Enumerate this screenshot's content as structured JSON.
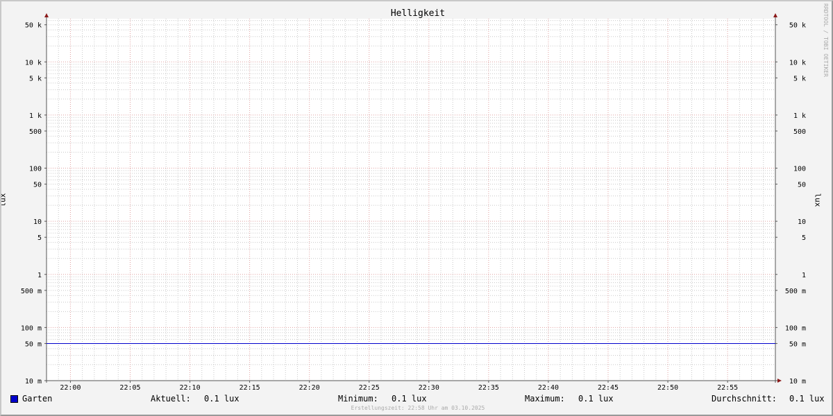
{
  "chart_data": {
    "type": "line",
    "title": "Helligkeit",
    "ylabel": "lux",
    "ylabel_right": "lux",
    "yscale": "log",
    "ylim": [
      0.01,
      65000
    ],
    "xlim": [
      "21:58",
      "22:59"
    ],
    "grid": true,
    "y_ticks": [
      {
        "value": 0.01,
        "label": "10 m"
      },
      {
        "value": 0.05,
        "label": "50 m"
      },
      {
        "value": 0.1,
        "label": "100 m"
      },
      {
        "value": 0.5,
        "label": "500 m"
      },
      {
        "value": 1,
        "label": "1"
      },
      {
        "value": 5,
        "label": "5"
      },
      {
        "value": 10,
        "label": "10"
      },
      {
        "value": 50,
        "label": "50"
      },
      {
        "value": 100,
        "label": "100"
      },
      {
        "value": 500,
        "label": "500"
      },
      {
        "value": 1000,
        "label": "1 k"
      },
      {
        "value": 5000,
        "label": "5 k"
      },
      {
        "value": 10000,
        "label": "10 k"
      },
      {
        "value": 50000,
        "label": "50 k"
      }
    ],
    "x_ticks": [
      "22:00",
      "22:05",
      "22:10",
      "22:15",
      "22:20",
      "22:25",
      "22:30",
      "22:35",
      "22:40",
      "22:45",
      "22:50",
      "22:55"
    ],
    "series": [
      {
        "name": "Garten",
        "color": "#0000cc",
        "x": [
          "21:58",
          "22:59"
        ],
        "values": [
          0.05,
          0.05
        ]
      }
    ],
    "colors": {
      "major_grid": "#e0a0a0",
      "minor_grid": "#c8c8c8",
      "axis": "#555555",
      "arrow": "#8b1a1a"
    }
  },
  "legend": {
    "series": "Garten",
    "aktuell_label": "Aktuell:",
    "aktuell_value": "0.1 lux",
    "minimum_label": "Minimum:",
    "minimum_value": "0.1 lux",
    "maximum_label": "Maximum:",
    "maximum_value": "0.1 lux",
    "avg_label": "Durchschnitt:",
    "avg_value": "0.1 lux"
  },
  "watermark": "RRDTOOL / TOBI OETIKER",
  "footer": "Erstellungszeit: 22:58 Uhr am 03.10.2025"
}
